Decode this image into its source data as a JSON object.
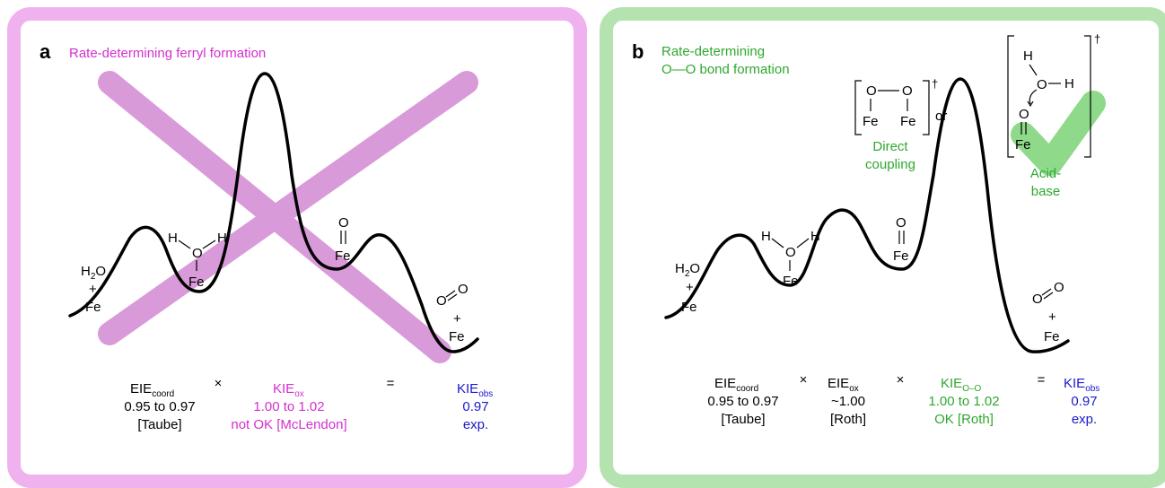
{
  "colors": {
    "magenta": "#d42fcf",
    "green": "#2ea82e",
    "blue": "#1a1acc",
    "pink_fill": "#f0b2ee",
    "green_fill": "#b5e3b0",
    "cross": "#d99ad9",
    "check": "#8fd98a"
  },
  "panel_a": {
    "letter": "a",
    "title": "Rate-determining ferryl formation",
    "species": {
      "h2o_h": "H",
      "h2o_2": "2",
      "h2o_o": "O",
      "plus": "+",
      "fe": "Fe",
      "w_h1": "H",
      "w_o": "O",
      "w_h2": "H",
      "w_fe": "Fe",
      "oxo_o": "O",
      "oxo_fe": "Fe",
      "o2_o1": "O",
      "o2_o2": "O",
      "o2_plus": "+",
      "o2_fe": "Fe"
    },
    "eq": {
      "t1_main": "EIE",
      "t1_sub": "coord",
      "t1_v": "0.95 to 0.97",
      "t1_ref": "[Taube]",
      "times": "×",
      "t2_main": "KIE",
      "t2_sub": "ox",
      "t2_v": "1.00 to 1.02",
      "t2_ref": "not OK [McLendon]",
      "equals": "=",
      "t3_main": "KIE",
      "t3_sub": "obs",
      "t3_v": "0.97",
      "t3_ref": "exp."
    }
  },
  "panel_b": {
    "letter": "b",
    "title_line1": "Rate-determining",
    "title_line2": "O—O bond formation",
    "dc": {
      "o1": "O",
      "o2": "O",
      "fe1": "Fe",
      "fe2": "Fe",
      "dagger": "†",
      "label1": "Direct",
      "label2": "coupling"
    },
    "or": "or",
    "ab": {
      "h1": "H",
      "o": "O",
      "h2": "H",
      "oxo_o": "O",
      "fe": "Fe",
      "dagger": "†",
      "label1": "Acid-",
      "label2": "base"
    },
    "species": {
      "h2o_h": "H",
      "h2o_2": "2",
      "h2o_o": "O",
      "plus": "+",
      "fe": "Fe",
      "w_h1": "H",
      "w_o": "O",
      "w_h2": "H",
      "w_fe": "Fe",
      "oxo_o": "O",
      "oxo_fe": "Fe",
      "o2_o1": "O",
      "o2_o2": "O",
      "o2_plus": "+",
      "o2_fe": "Fe"
    },
    "eq": {
      "t1_main": "EIE",
      "t1_sub": "coord",
      "t1_v": "0.95 to 0.97",
      "t1_ref": "[Taube]",
      "times1": "×",
      "t2_main": "EIE",
      "t2_sub": "ox",
      "t2_v": "~1.00",
      "t2_ref": "[Roth]",
      "times2": "×",
      "t3_main": "KIE",
      "t3_sub": "O–O",
      "t3_v": "1.00 to 1.02",
      "t3_ref": "OK [Roth]",
      "equals": "=",
      "t4_main": "KIE",
      "t4_sub": "obs",
      "t4_v": "0.97",
      "t4_ref": "exp."
    }
  }
}
